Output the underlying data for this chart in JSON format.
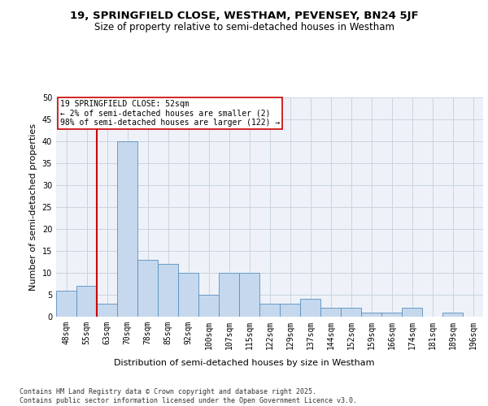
{
  "title1": "19, SPRINGFIELD CLOSE, WESTHAM, PEVENSEY, BN24 5JF",
  "title2": "Size of property relative to semi-detached houses in Westham",
  "xlabel": "Distribution of semi-detached houses by size in Westham",
  "ylabel": "Number of semi-detached properties",
  "categories": [
    "48sqm",
    "55sqm",
    "63sqm",
    "70sqm",
    "78sqm",
    "85sqm",
    "92sqm",
    "100sqm",
    "107sqm",
    "115sqm",
    "122sqm",
    "129sqm",
    "137sqm",
    "144sqm",
    "152sqm",
    "159sqm",
    "166sqm",
    "174sqm",
    "181sqm",
    "189sqm",
    "196sqm"
  ],
  "bar_values": [
    6,
    7,
    3,
    40,
    13,
    12,
    10,
    5,
    10,
    10,
    3,
    3,
    4,
    2,
    2,
    1,
    1,
    2,
    0,
    1,
    0
  ],
  "bar_color": "#c5d8ed",
  "bar_edge_color": "#5a8fc0",
  "grid_color": "#c8d4e0",
  "background_color": "#eef2f8",
  "property_line_x": 1.5,
  "annotation_title": "19 SPRINGFIELD CLOSE: 52sqm",
  "annotation_line1": "← 2% of semi-detached houses are smaller (2)",
  "annotation_line2": "98% of semi-detached houses are larger (122) →",
  "annotation_box_color": "#ffffff",
  "annotation_border_color": "#cc0000",
  "ylim": [
    0,
    50
  ],
  "yticks": [
    0,
    5,
    10,
    15,
    20,
    25,
    30,
    35,
    40,
    45,
    50
  ],
  "footer": "Contains HM Land Registry data © Crown copyright and database right 2025.\nContains public sector information licensed under the Open Government Licence v3.0.",
  "title1_fontsize": 9.5,
  "title2_fontsize": 8.5,
  "ylabel_fontsize": 8,
  "xlabel_fontsize": 8,
  "tick_fontsize": 7,
  "annotation_fontsize": 7,
  "footer_fontsize": 6
}
